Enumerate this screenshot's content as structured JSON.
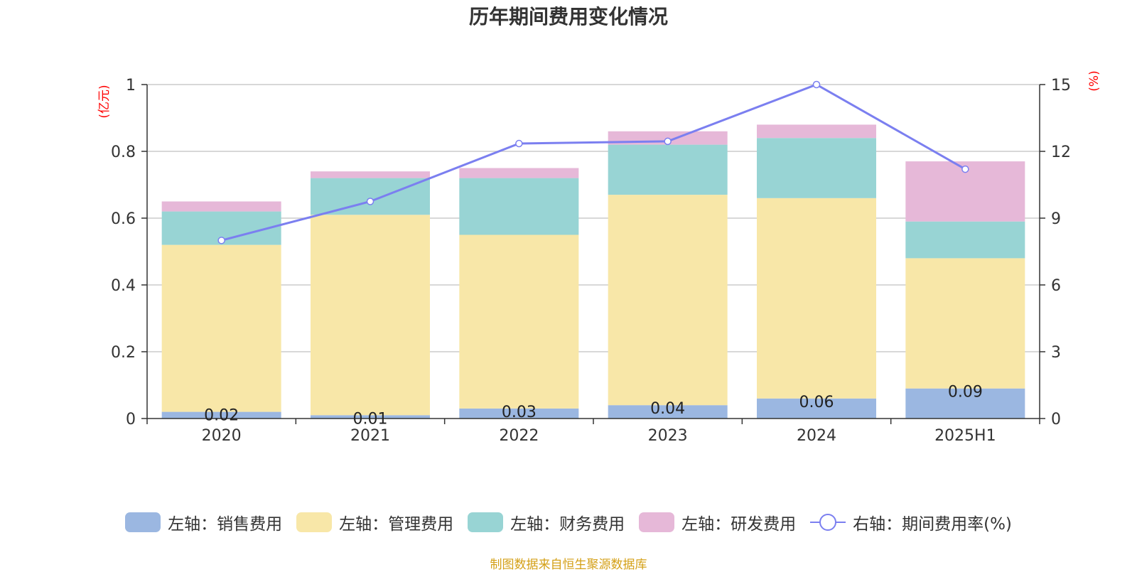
{
  "chart_data": {
    "type": "bar",
    "title": "历年期间费用变化情况",
    "categories": [
      "2020",
      "2021",
      "2022",
      "2023",
      "2024",
      "2025H1"
    ],
    "left_axis": {
      "unit_label": "(亿元)",
      "ylim": [
        0,
        1
      ],
      "ticks": [
        "0",
        "0.2",
        "0.4",
        "0.6",
        "0.8",
        "1"
      ],
      "tick_values": [
        0,
        0.2,
        0.4,
        0.6,
        0.8,
        1
      ]
    },
    "right_axis": {
      "unit_label": "(%)",
      "ylim": [
        0,
        15
      ],
      "ticks": [
        "0",
        "3",
        "6",
        "9",
        "12",
        "15"
      ],
      "tick_values": [
        0,
        3,
        6,
        9,
        12,
        15
      ]
    },
    "stacked": true,
    "grid": true,
    "series": [
      {
        "name": "左轴：销售费用",
        "type": "bar",
        "axis": "left",
        "color": "#9bb7e1",
        "values": [
          0.02,
          0.01,
          0.03,
          0.04,
          0.06,
          0.09
        ],
        "labels": [
          "0.02",
          "0.01",
          "0.03",
          "0.04",
          "0.06",
          "0.09"
        ]
      },
      {
        "name": "左轴：管理费用",
        "type": "bar",
        "axis": "left",
        "color": "#f8e7a8",
        "values": [
          0.5,
          0.6,
          0.52,
          0.63,
          0.6,
          0.39
        ]
      },
      {
        "name": "左轴：财务费用",
        "type": "bar",
        "axis": "left",
        "color": "#98d4d4",
        "values": [
          0.1,
          0.11,
          0.17,
          0.15,
          0.18,
          0.11
        ]
      },
      {
        "name": "左轴：研发费用",
        "type": "bar",
        "axis": "left",
        "color": "#e6b8d8",
        "values": [
          0.03,
          0.02,
          0.03,
          0.04,
          0.04,
          0.18
        ]
      },
      {
        "name": "右轴：期间费用率(%)",
        "type": "line",
        "axis": "right",
        "color": "#7b7ff0",
        "values": [
          8.0,
          9.75,
          12.35,
          12.45,
          15.0,
          11.2
        ]
      }
    ],
    "legend_position": "bottom"
  },
  "source_text": "制图数据来自恒生聚源数据库",
  "colors": {
    "axis_label": "#ff0000",
    "text": "#333333",
    "grid": "#cccccc",
    "source": "#d4a017"
  }
}
